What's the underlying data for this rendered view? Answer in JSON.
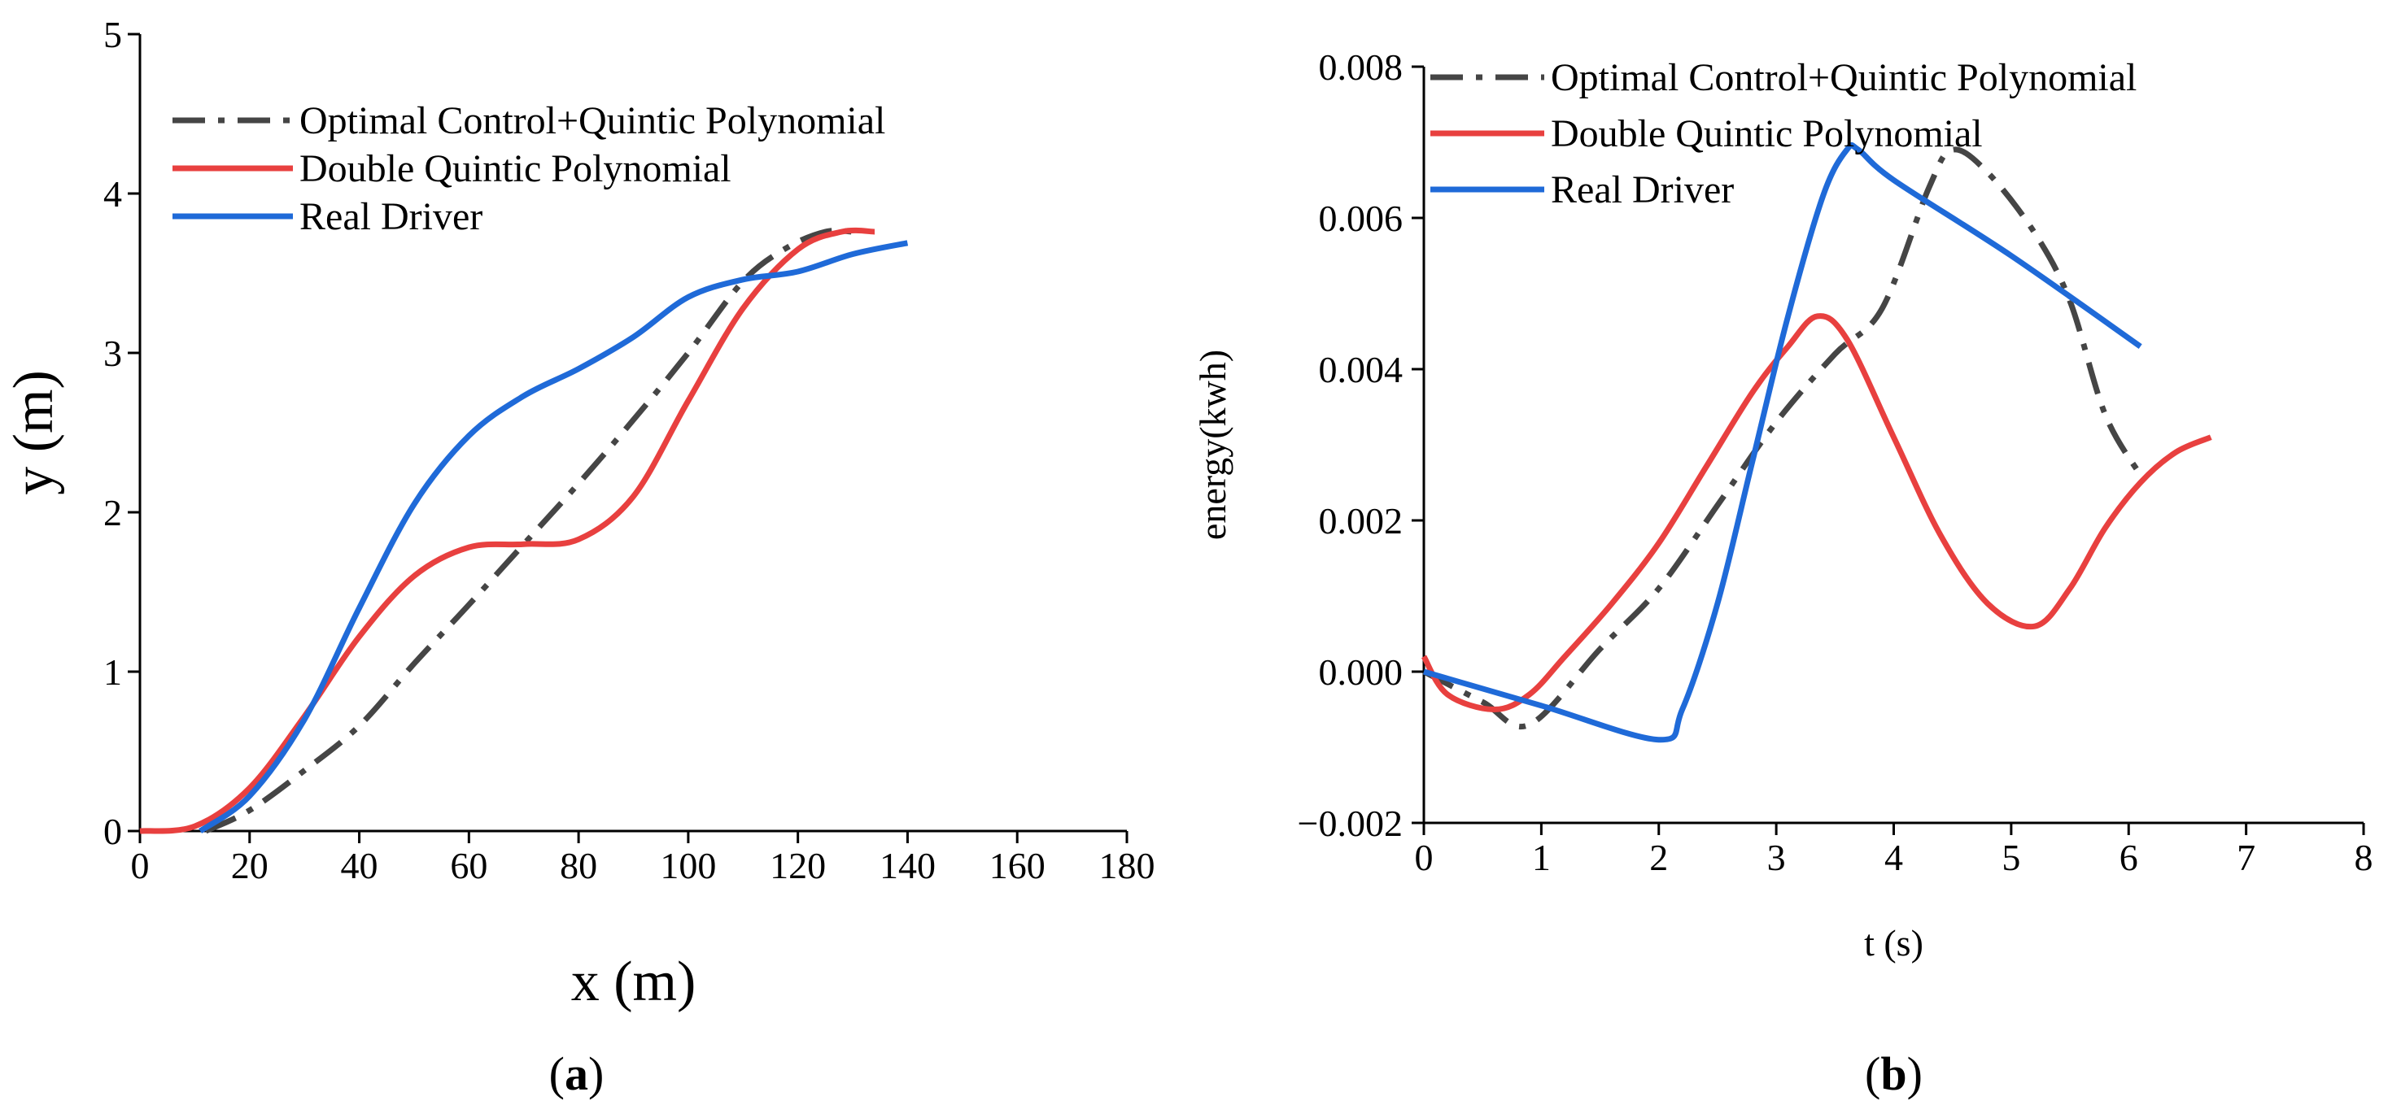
{
  "chart_data": [
    {
      "type": "line",
      "panel_label": "a",
      "title": "",
      "xlabel": "x (m)",
      "ylabel": "y (m)",
      "xlim": [
        0,
        180
      ],
      "ylim": [
        0,
        5
      ],
      "xticks": [
        0,
        20,
        40,
        60,
        80,
        100,
        120,
        140,
        160,
        180
      ],
      "yticks": [
        0,
        1,
        2,
        3,
        4,
        5
      ],
      "legend_position": "top-left",
      "series": [
        {
          "name": "Optimal Control+Quintic Polynomial",
          "color": "#454545",
          "style": "dashdot",
          "x": [
            12,
            20,
            30,
            40,
            50,
            60,
            70,
            80,
            90,
            100,
            110,
            118,
            125,
            130
          ],
          "y": [
            0.0,
            0.13,
            0.38,
            0.66,
            1.05,
            1.42,
            1.8,
            2.18,
            2.58,
            3.0,
            3.45,
            3.66,
            3.76,
            3.76
          ]
        },
        {
          "name": "Double Quintic Polynomial",
          "color": "#e8403f",
          "style": "solid",
          "x": [
            0,
            10,
            20,
            30,
            40,
            50,
            60,
            70,
            80,
            90,
            100,
            110,
            120,
            128,
            134
          ],
          "y": [
            0.0,
            0.03,
            0.27,
            0.72,
            1.22,
            1.6,
            1.78,
            1.8,
            1.83,
            2.1,
            2.7,
            3.28,
            3.65,
            3.76,
            3.76
          ]
        },
        {
          "name": "Real Driver",
          "color": "#1f6ad8",
          "style": "solid",
          "x": [
            11,
            20,
            30,
            40,
            50,
            60,
            70,
            80,
            90,
            100,
            110,
            120,
            130,
            140
          ],
          "y": [
            0.0,
            0.22,
            0.7,
            1.4,
            2.05,
            2.48,
            2.73,
            2.9,
            3.1,
            3.35,
            3.46,
            3.51,
            3.62,
            3.69
          ]
        }
      ]
    },
    {
      "type": "line",
      "panel_label": "b",
      "title": "",
      "xlabel": "t (s)",
      "ylabel": "energy(kwh)",
      "xlim": [
        0,
        8
      ],
      "ylim": [
        -0.002,
        0.008
      ],
      "xticks": [
        0,
        1,
        2,
        3,
        4,
        5,
        6,
        7,
        8
      ],
      "yticks": [
        -0.002,
        0.0,
        0.002,
        0.004,
        0.006,
        0.008
      ],
      "ytick_labels": [
        "−0.002",
        "0.000",
        "0.002",
        "0.004",
        "0.006",
        "0.008"
      ],
      "legend_position": "top-left",
      "series": [
        {
          "name": "Optimal Control+Quintic Polynomial",
          "color": "#454545",
          "style": "dashdot",
          "x": [
            0.0,
            0.5,
            0.9,
            1.5,
            2.0,
            2.5,
            3.0,
            3.5,
            3.9,
            4.3,
            4.5,
            4.8,
            5.2,
            5.5,
            5.8,
            6.1
          ],
          "y": [
            0.0,
            -0.0004,
            -0.0007,
            0.0003,
            0.0011,
            0.0022,
            0.0033,
            0.0042,
            0.0048,
            0.0064,
            0.0069,
            0.0066,
            0.0058,
            0.0049,
            0.0034,
            0.0026
          ]
        },
        {
          "name": "Double Quintic Polynomial",
          "color": "#e8403f",
          "style": "solid",
          "x": [
            0.0,
            0.2,
            0.6,
            0.9,
            1.2,
            1.6,
            2.0,
            2.4,
            2.8,
            3.1,
            3.35,
            3.6,
            4.0,
            4.4,
            4.8,
            5.2,
            5.5,
            5.8,
            6.1,
            6.4,
            6.7
          ],
          "y": [
            0.0002,
            -0.0003,
            -0.0005,
            -0.0003,
            0.0002,
            0.0009,
            0.0017,
            0.0027,
            0.0037,
            0.0043,
            0.0047,
            0.0044,
            0.0031,
            0.0018,
            0.0009,
            0.0006,
            0.0011,
            0.0019,
            0.0025,
            0.0029,
            0.0031
          ]
        },
        {
          "name": "Real Driver",
          "color": "#1f6ad8",
          "style": "solid",
          "x": [
            0.0,
            1.0,
            2.0,
            2.2,
            2.5,
            2.8,
            3.1,
            3.4,
            3.6,
            3.7,
            4.0,
            5.0,
            6.1
          ],
          "y": [
            0.0,
            -0.00045,
            -0.0009,
            -0.0005,
            0.0009,
            0.0028,
            0.0047,
            0.0063,
            0.0069,
            0.0069,
            0.0065,
            0.0055,
            0.0043
          ]
        }
      ]
    }
  ]
}
